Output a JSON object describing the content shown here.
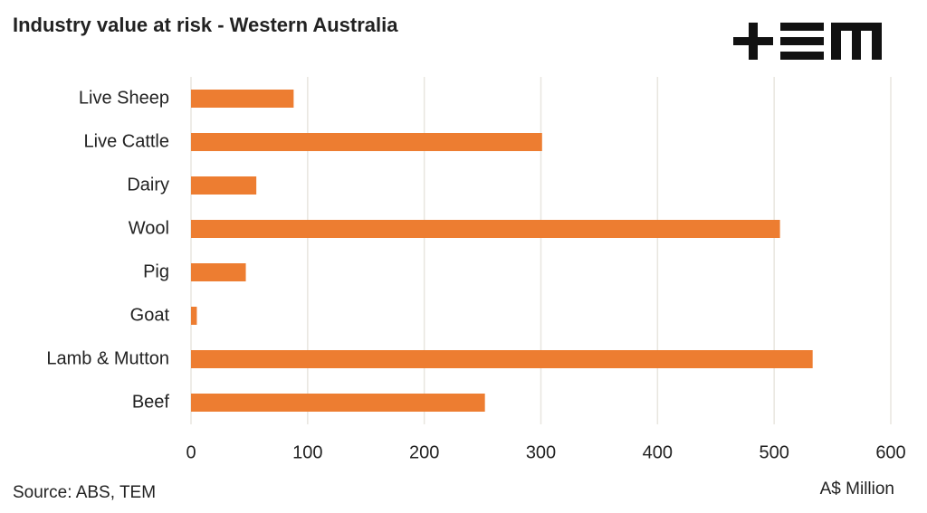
{
  "chart_data": {
    "type": "bar",
    "orientation": "horizontal",
    "title": "Industry value at risk - Western Australia",
    "source": "Source: ABS, TEM",
    "x_label": "A$ Million",
    "categories": [
      "Live Sheep",
      "Live Cattle",
      "Dairy",
      "Wool",
      "Pig",
      "Goat",
      "Lamb & Mutton",
      "Beef"
    ],
    "values": [
      88,
      301,
      56,
      505,
      47,
      5,
      533,
      252
    ],
    "color": "#ed7d31",
    "xlim": [
      0,
      600
    ],
    "xticks": [
      0,
      100,
      200,
      300,
      400,
      500,
      600
    ],
    "grid": true
  }
}
